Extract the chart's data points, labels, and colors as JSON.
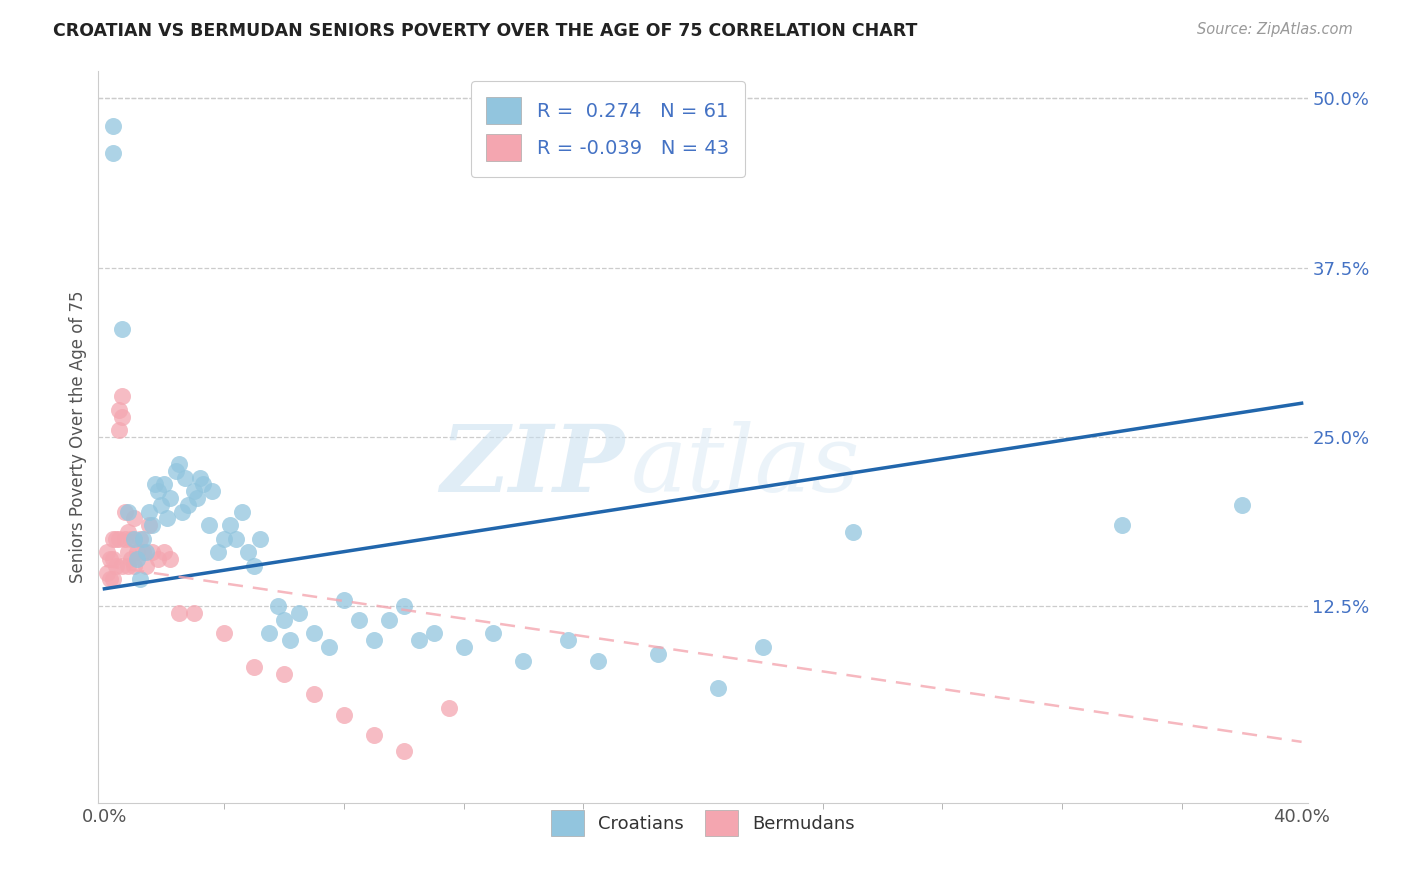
{
  "title": "CROATIAN VS BERMUDAN SENIORS POVERTY OVER THE AGE OF 75 CORRELATION CHART",
  "source": "Source: ZipAtlas.com",
  "ylabel": "Seniors Poverty Over the Age of 75",
  "xlim": [
    -0.002,
    0.402
  ],
  "ylim": [
    -0.02,
    0.52
  ],
  "yticks_right": [
    0.125,
    0.25,
    0.375,
    0.5
  ],
  "ytick_right_labels": [
    "12.5%",
    "25.0%",
    "37.5%",
    "50.0%"
  ],
  "xticks": [
    0.0,
    0.1,
    0.2,
    0.3,
    0.4
  ],
  "xticklabels": [
    "0.0%",
    "",
    "",
    "",
    "40.0%"
  ],
  "croatian_R": 0.274,
  "croatian_N": 61,
  "bermudan_R": -0.039,
  "bermudan_N": 43,
  "croatian_color": "#92c5de",
  "bermudan_color": "#f4a6b0",
  "croatian_line_color": "#2166ac",
  "bermudan_line_color": "#f4a6b0",
  "watermark_zip": "ZIP",
  "watermark_atlas": "atlas",
  "legend_croatians": "Croatians",
  "legend_bermudans": "Bermudans",
  "cr_line_y0": 0.138,
  "cr_line_y1": 0.275,
  "bm_line_y0": 0.155,
  "bm_line_y1": 0.025,
  "croatian_x": [
    0.003,
    0.003,
    0.006,
    0.008,
    0.01,
    0.011,
    0.012,
    0.013,
    0.014,
    0.015,
    0.016,
    0.017,
    0.018,
    0.019,
    0.02,
    0.021,
    0.022,
    0.024,
    0.025,
    0.026,
    0.027,
    0.028,
    0.03,
    0.031,
    0.032,
    0.033,
    0.035,
    0.036,
    0.038,
    0.04,
    0.042,
    0.044,
    0.046,
    0.048,
    0.05,
    0.052,
    0.055,
    0.058,
    0.06,
    0.062,
    0.065,
    0.07,
    0.075,
    0.08,
    0.085,
    0.09,
    0.095,
    0.1,
    0.105,
    0.11,
    0.12,
    0.13,
    0.14,
    0.155,
    0.165,
    0.185,
    0.205,
    0.22,
    0.25,
    0.34,
    0.38
  ],
  "croatian_y": [
    0.48,
    0.46,
    0.33,
    0.195,
    0.175,
    0.16,
    0.145,
    0.175,
    0.165,
    0.195,
    0.185,
    0.215,
    0.21,
    0.2,
    0.215,
    0.19,
    0.205,
    0.225,
    0.23,
    0.195,
    0.22,
    0.2,
    0.21,
    0.205,
    0.22,
    0.215,
    0.185,
    0.21,
    0.165,
    0.175,
    0.185,
    0.175,
    0.195,
    0.165,
    0.155,
    0.175,
    0.105,
    0.125,
    0.115,
    0.1,
    0.12,
    0.105,
    0.095,
    0.13,
    0.115,
    0.1,
    0.115,
    0.125,
    0.1,
    0.105,
    0.095,
    0.105,
    0.085,
    0.1,
    0.085,
    0.09,
    0.065,
    0.095,
    0.18,
    0.185,
    0.2
  ],
  "bermudan_x": [
    0.001,
    0.001,
    0.002,
    0.002,
    0.003,
    0.003,
    0.003,
    0.004,
    0.004,
    0.005,
    0.005,
    0.005,
    0.006,
    0.006,
    0.006,
    0.007,
    0.007,
    0.008,
    0.008,
    0.008,
    0.009,
    0.009,
    0.01,
    0.01,
    0.011,
    0.012,
    0.013,
    0.014,
    0.015,
    0.016,
    0.018,
    0.02,
    0.022,
    0.025,
    0.03,
    0.04,
    0.05,
    0.06,
    0.07,
    0.08,
    0.09,
    0.1,
    0.115
  ],
  "bermudan_y": [
    0.165,
    0.15,
    0.16,
    0.145,
    0.175,
    0.16,
    0.145,
    0.175,
    0.155,
    0.27,
    0.255,
    0.175,
    0.28,
    0.265,
    0.155,
    0.195,
    0.175,
    0.18,
    0.165,
    0.155,
    0.175,
    0.16,
    0.19,
    0.155,
    0.165,
    0.175,
    0.165,
    0.155,
    0.185,
    0.165,
    0.16,
    0.165,
    0.16,
    0.12,
    0.12,
    0.105,
    0.08,
    0.075,
    0.06,
    0.045,
    0.03,
    0.018,
    0.05
  ]
}
